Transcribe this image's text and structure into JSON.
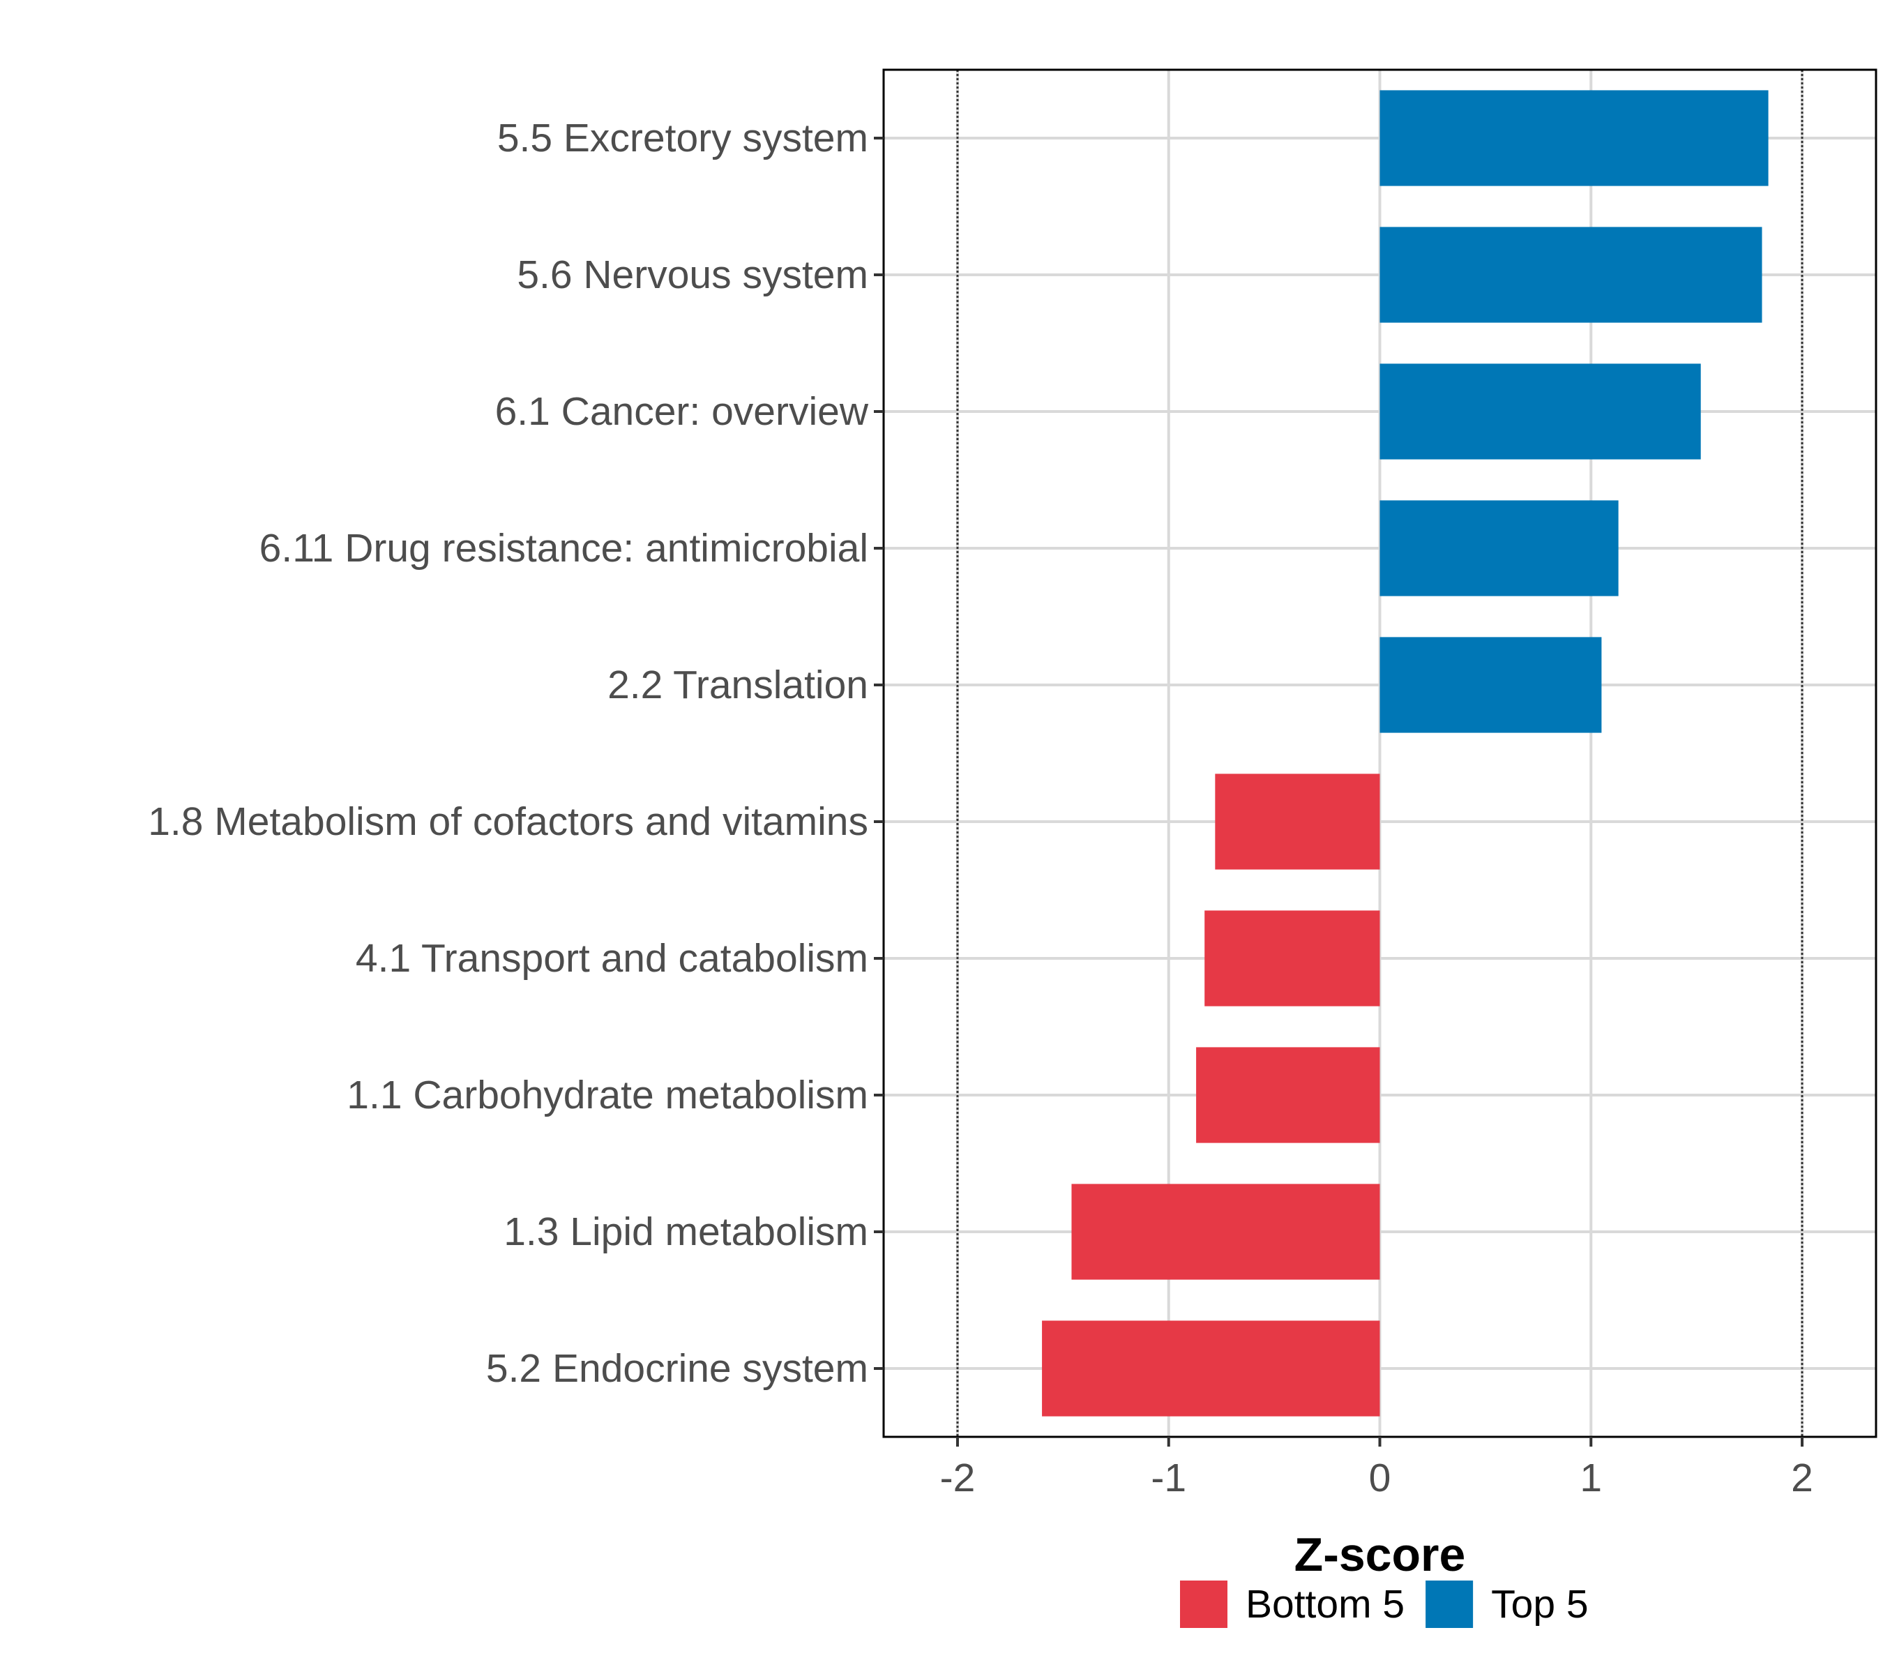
{
  "chart_data": {
    "type": "bar",
    "orientation": "horizontal",
    "title": "",
    "xlabel": "Z-score",
    "ylabel": "",
    "xlim": [
      -2.35,
      2.35
    ],
    "xticks": [
      -2,
      -1,
      0,
      1,
      2
    ],
    "xtick_labels": [
      "-2",
      "-1",
      "0",
      "1",
      "2"
    ],
    "reference_lines": [
      -2,
      2
    ],
    "grid": true,
    "legend_position": "bottom",
    "categories": [
      "5.5 Excretory system",
      "5.6 Nervous system",
      "6.1 Cancer: overview",
      "6.11 Drug resistance: antimicrobial",
      "2.2 Translation",
      "1.8 Metabolism of cofactors and vitamins",
      "4.1 Transport and catabolism",
      "1.1 Carbohydrate metabolism",
      "1.3 Lipid metabolism",
      "5.2 Endocrine system"
    ],
    "values": [
      1.84,
      1.81,
      1.52,
      1.13,
      1.05,
      -0.78,
      -0.83,
      -0.87,
      -1.46,
      -1.6
    ],
    "groups": [
      "Top 5",
      "Top 5",
      "Top 5",
      "Top 5",
      "Top 5",
      "Bottom 5",
      "Bottom 5",
      "Bottom 5",
      "Bottom 5",
      "Bottom 5"
    ],
    "legend": [
      {
        "label": "Bottom 5",
        "color": "#e63946"
      },
      {
        "label": "Top 5",
        "color": "#0077b6"
      }
    ]
  }
}
